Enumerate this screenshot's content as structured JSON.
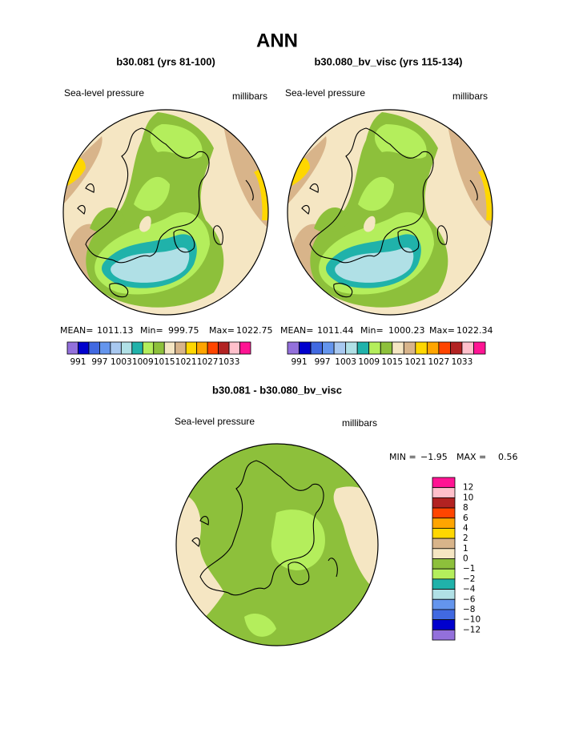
{
  "title": "ANN",
  "panels": [
    {
      "subtitle": "b30.081 (yrs 81-100)",
      "field": "Sea-level pressure",
      "units": "millibars",
      "stats": {
        "mean_label": "MEAN=",
        "mean": 1011.13,
        "min_label": "Min=",
        "min": 999.75,
        "max_label": "Max=",
        "max": 1022.75
      }
    },
    {
      "subtitle": "b30.080_bv_visc (yrs 115-134)",
      "field": "Sea-level pressure",
      "units": "millibars",
      "stats": {
        "mean_label": "MEAN=",
        "mean": 1011.44,
        "min_label": "Min=",
        "min": 1000.23,
        "max_label": "Max=",
        "max": 1022.34
      }
    }
  ],
  "colorbar": {
    "colors": [
      "#9370db",
      "#0000cd",
      "#4169e1",
      "#6495ed",
      "#a8c8f0",
      "#b0e0e6",
      "#20b2aa",
      "#b4ee5c",
      "#8dc03b",
      "#f5e6c3",
      "#d8b48a",
      "#ffd700",
      "#ffa500",
      "#ff4500",
      "#b22222",
      "#ffc0cb",
      "#ff1493"
    ],
    "labels": [
      991,
      997,
      1003,
      1009,
      1015,
      1021,
      1027,
      1033
    ]
  },
  "diff": {
    "title": "b30.081 - b30.080_bv_visc",
    "field": "Sea-level pressure",
    "units": "millibars",
    "min_label": "MIN =",
    "min": "−1.95",
    "max_label": "MAX =",
    "max": "0.56",
    "colorbar": {
      "colors": [
        "#ff1493",
        "#ffc0cb",
        "#b22222",
        "#ff4500",
        "#ffa500",
        "#ffd700",
        "#d8b48a",
        "#f5e6c3",
        "#8dc03b",
        "#b4ee5c",
        "#20b2aa",
        "#b0e0e6",
        "#6495ed",
        "#4169e1",
        "#0000cd",
        "#9370db"
      ],
      "labels": [
        "12",
        "10",
        "8",
        "6",
        "4",
        "2",
        "1",
        "0",
        "−1",
        "−2",
        "−4",
        "−6",
        "−8",
        "−10",
        "−12"
      ]
    }
  }
}
